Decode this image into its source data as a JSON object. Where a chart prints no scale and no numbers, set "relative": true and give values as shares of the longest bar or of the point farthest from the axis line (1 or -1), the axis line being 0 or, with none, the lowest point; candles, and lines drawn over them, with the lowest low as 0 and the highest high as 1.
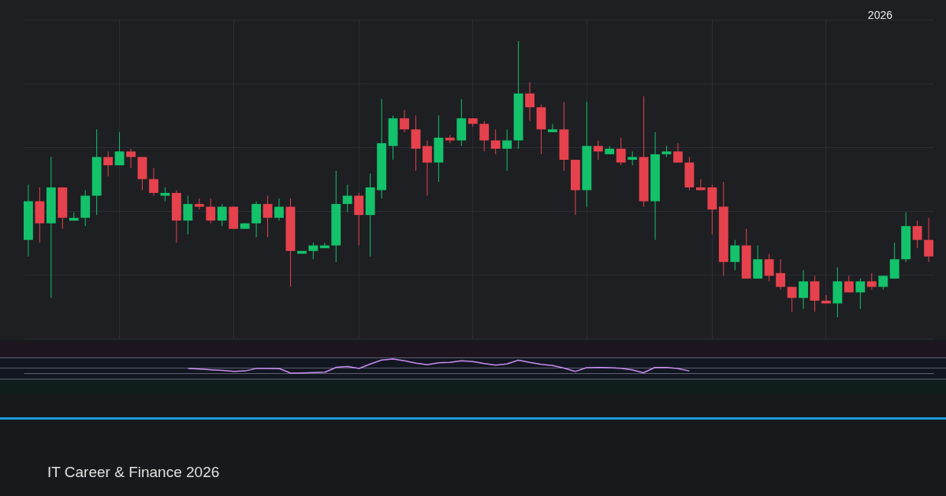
{
  "chart_data": [
    {
      "type": "candlestick",
      "relative": true,
      "grid": true,
      "annotations": [
        "2026",
        "IT Career & Finance 2026"
      ],
      "categories": [
        null,
        null,
        null,
        null,
        null,
        null,
        null,
        null,
        null,
        null,
        null,
        null,
        null,
        null,
        null,
        null,
        null,
        null,
        null,
        null,
        null,
        null,
        null,
        null,
        null,
        null,
        null,
        null,
        null,
        null,
        null,
        null,
        null,
        null,
        null,
        null,
        null,
        null,
        null,
        null,
        null,
        null,
        null,
        null,
        null,
        null,
        null,
        null,
        null,
        null,
        null,
        null,
        null,
        null,
        null,
        null,
        null,
        null,
        null,
        null,
        null,
        null,
        null,
        null,
        null,
        null,
        null,
        null,
        null,
        null,
        null,
        null,
        null,
        null,
        null,
        null,
        null,
        null,
        null,
        null
      ],
      "ohlc": [
        [
          0.28,
          0.48,
          0.22,
          0.42
        ],
        [
          0.42,
          0.47,
          0.27,
          0.34
        ],
        [
          0.34,
          0.58,
          0.07,
          0.47
        ],
        [
          0.47,
          0.47,
          0.32,
          0.36
        ],
        [
          0.35,
          0.38,
          0.35,
          0.36
        ],
        [
          0.36,
          0.46,
          0.33,
          0.44
        ],
        [
          0.44,
          0.68,
          0.37,
          0.58
        ],
        [
          0.58,
          0.6,
          0.51,
          0.55
        ],
        [
          0.55,
          0.67,
          0.55,
          0.6
        ],
        [
          0.6,
          0.61,
          0.54,
          0.58
        ],
        [
          0.58,
          0.58,
          0.46,
          0.5
        ],
        [
          0.5,
          0.54,
          0.44,
          0.45
        ],
        [
          0.44,
          0.47,
          0.42,
          0.45
        ],
        [
          0.45,
          0.46,
          0.27,
          0.35
        ],
        [
          0.35,
          0.44,
          0.3,
          0.41
        ],
        [
          0.41,
          0.43,
          0.39,
          0.4
        ],
        [
          0.4,
          0.43,
          0.34,
          0.35
        ],
        [
          0.35,
          0.41,
          0.33,
          0.4
        ],
        [
          0.4,
          0.4,
          0.32,
          0.32
        ],
        [
          0.32,
          0.34,
          0.32,
          0.34
        ],
        [
          0.34,
          0.42,
          0.29,
          0.41
        ],
        [
          0.41,
          0.44,
          0.29,
          0.36
        ],
        [
          0.36,
          0.43,
          0.35,
          0.4
        ],
        [
          0.4,
          0.43,
          0.11,
          0.24
        ],
        [
          0.23,
          0.24,
          0.23,
          0.24
        ],
        [
          0.24,
          0.27,
          0.21,
          0.26
        ],
        [
          0.25,
          0.27,
          0.25,
          0.26
        ],
        [
          0.26,
          0.53,
          0.2,
          0.41
        ],
        [
          0.41,
          0.48,
          0.38,
          0.44
        ],
        [
          0.44,
          0.45,
          0.26,
          0.37
        ],
        [
          0.37,
          0.52,
          0.22,
          0.47
        ],
        [
          0.46,
          0.79,
          0.43,
          0.63
        ],
        [
          0.62,
          0.73,
          0.57,
          0.72
        ],
        [
          0.72,
          0.75,
          0.67,
          0.68
        ],
        [
          0.68,
          0.73,
          0.53,
          0.61
        ],
        [
          0.62,
          0.64,
          0.44,
          0.56
        ],
        [
          0.56,
          0.73,
          0.49,
          0.65
        ],
        [
          0.65,
          0.66,
          0.63,
          0.64
        ],
        [
          0.64,
          0.79,
          0.62,
          0.72
        ],
        [
          0.72,
          0.72,
          0.69,
          0.7
        ],
        [
          0.7,
          0.71,
          0.6,
          0.64
        ],
        [
          0.64,
          0.68,
          0.59,
          0.61
        ],
        [
          0.61,
          0.68,
          0.53,
          0.64
        ],
        [
          0.64,
          1,
          0.61,
          0.81
        ],
        [
          0.81,
          0.85,
          0.71,
          0.76
        ],
        [
          0.76,
          0.77,
          0.59,
          0.68
        ],
        [
          0.67,
          0.7,
          0.67,
          0.68
        ],
        [
          0.68,
          0.78,
          0.53,
          0.57
        ],
        [
          0.57,
          0.57,
          0.37,
          0.46
        ],
        [
          0.46,
          0.78,
          0.4,
          0.62
        ],
        [
          0.62,
          0.64,
          0.57,
          0.6
        ],
        [
          0.59,
          0.62,
          0.59,
          0.61
        ],
        [
          0.61,
          0.65,
          0.55,
          0.56
        ],
        [
          0.57,
          0.6,
          0.55,
          0.58
        ],
        [
          0.58,
          0.8,
          0.4,
          0.42
        ],
        [
          0.42,
          0.67,
          0.28,
          0.59
        ],
        [
          0.59,
          0.62,
          0.58,
          0.6
        ],
        [
          0.6,
          0.63,
          0.56,
          0.56
        ],
        [
          0.56,
          0.58,
          0.46,
          0.47
        ],
        [
          0.47,
          0.5,
          0.46,
          0.46
        ],
        [
          0.47,
          0.48,
          0.3,
          0.39
        ],
        [
          0.4,
          0.49,
          0.15,
          0.2
        ],
        [
          0.2,
          0.28,
          0.17,
          0.26
        ],
        [
          0.26,
          0.32,
          0.14,
          0.14
        ],
        [
          0.14,
          0.26,
          0.14,
          0.21
        ],
        [
          0.21,
          0.23,
          0.13,
          0.15
        ],
        [
          0.16,
          0.21,
          0.1,
          0.11
        ],
        [
          0.11,
          0.11,
          0.02,
          0.07
        ],
        [
          0.07,
          0.17,
          0.03,
          0.13
        ],
        [
          0.13,
          0.15,
          0.02,
          0.06
        ],
        [
          0.06,
          0.08,
          0.05,
          0.05
        ],
        [
          0.05,
          0.18,
          0,
          0.13
        ],
        [
          0.13,
          0.15,
          0.09,
          0.09
        ],
        [
          0.09,
          0.14,
          0.03,
          0.13
        ],
        [
          0.13,
          0.16,
          0.1,
          0.11
        ],
        [
          0.11,
          0.15,
          0.1,
          0.15
        ],
        [
          0.14,
          0.27,
          0.14,
          0.21
        ],
        [
          0.21,
          0.38,
          0.2,
          0.33
        ],
        [
          0.33,
          0.35,
          0.25,
          0.28
        ],
        [
          0.28,
          0.36,
          0.2,
          0.22
        ]
      ],
      "colors": [
        "#13c26b",
        "#e5424d",
        "#13c26b",
        "#e5424d",
        "#13c26b",
        "#13c26b",
        "#13c26b",
        "#e5424d",
        "#13c26b",
        "#e5424d",
        "#e5424d",
        "#e5424d",
        "#13c26b",
        "#e5424d",
        "#13c26b",
        "#e5424d",
        "#e5424d",
        "#13c26b",
        "#e5424d",
        "#13c26b",
        "#13c26b",
        "#e5424d",
        "#13c26b",
        "#e5424d",
        "#13c26b",
        "#13c26b",
        "#13c26b",
        "#13c26b",
        "#13c26b",
        "#e5424d",
        "#13c26b",
        "#13c26b",
        "#13c26b",
        "#e5424d",
        "#e5424d",
        "#e5424d",
        "#13c26b",
        "#e5424d",
        "#13c26b",
        "#e5424d",
        "#e5424d",
        "#e5424d",
        "#13c26b",
        "#13c26b",
        "#e5424d",
        "#e5424d",
        "#13c26b",
        "#e5424d",
        "#e5424d",
        "#13c26b",
        "#e5424d",
        "#13c26b",
        "#e5424d",
        "#13c26b",
        "#e5424d",
        "#13c26b",
        "#13c26b",
        "#e5424d",
        "#e5424d",
        "#e5424d",
        "#e5424d",
        "#e5424d",
        "#13c26b",
        "#e5424d",
        "#13c26b",
        "#e5424d",
        "#e5424d",
        "#e5424d",
        "#13c26b",
        "#e5424d",
        "#e5424d",
        "#13c26b",
        "#e5424d",
        "#13c26b",
        "#e5424d",
        "#13c26b",
        "#13c26b",
        "#13c26b",
        "#e5424d",
        "#e5424d"
      ]
    },
    {
      "type": "line",
      "relative": true,
      "categories": [
        null,
        null,
        null,
        null,
        null,
        null,
        null,
        null,
        null,
        null,
        null,
        null,
        null,
        null,
        null,
        null,
        null,
        null,
        null,
        null,
        null,
        null,
        null,
        null,
        null,
        null,
        null,
        null,
        null,
        null,
        null,
        null,
        null,
        null,
        null,
        null,
        null,
        null,
        null,
        null,
        null,
        null,
        null,
        null,
        null,
        null,
        null,
        null,
        null,
        null,
        null,
        null,
        null,
        null,
        null,
        null,
        null,
        null,
        null,
        null,
        null,
        null,
        null,
        null,
        null,
        null,
        null,
        null,
        null,
        null,
        null,
        null,
        null,
        null,
        null,
        null,
        null,
        null,
        null,
        null
      ],
      "series": [
        {
          "color": "#c78cf0",
          "values": [
            null,
            null,
            null,
            null,
            null,
            null,
            null,
            null,
            null,
            null,
            null,
            null,
            null,
            null,
            0.34,
            0.29,
            0.24,
            0.2,
            0.13,
            0.16,
            0.34,
            0.34,
            0.32,
            0,
            0.02,
            0.04,
            0.07,
            0.42,
            0.47,
            0.33,
            0.65,
            0.93,
            1,
            0.87,
            0.71,
            0.6,
            0.73,
            0.77,
            0.87,
            0.82,
            0.68,
            0.57,
            0.65,
            0.92,
            0.76,
            0.62,
            0.54,
            0.36,
            0.12,
            0.39,
            0.4,
            0.39,
            0.35,
            0.24,
            0.03,
            0.4,
            0.4,
            0.33,
            0.16,
            null,
            null,
            null,
            null,
            null,
            null,
            null,
            null,
            null,
            null,
            null,
            null,
            null,
            null,
            null,
            null,
            null,
            null,
            null,
            null,
            null
          ]
        }
      ]
    }
  ]
}
